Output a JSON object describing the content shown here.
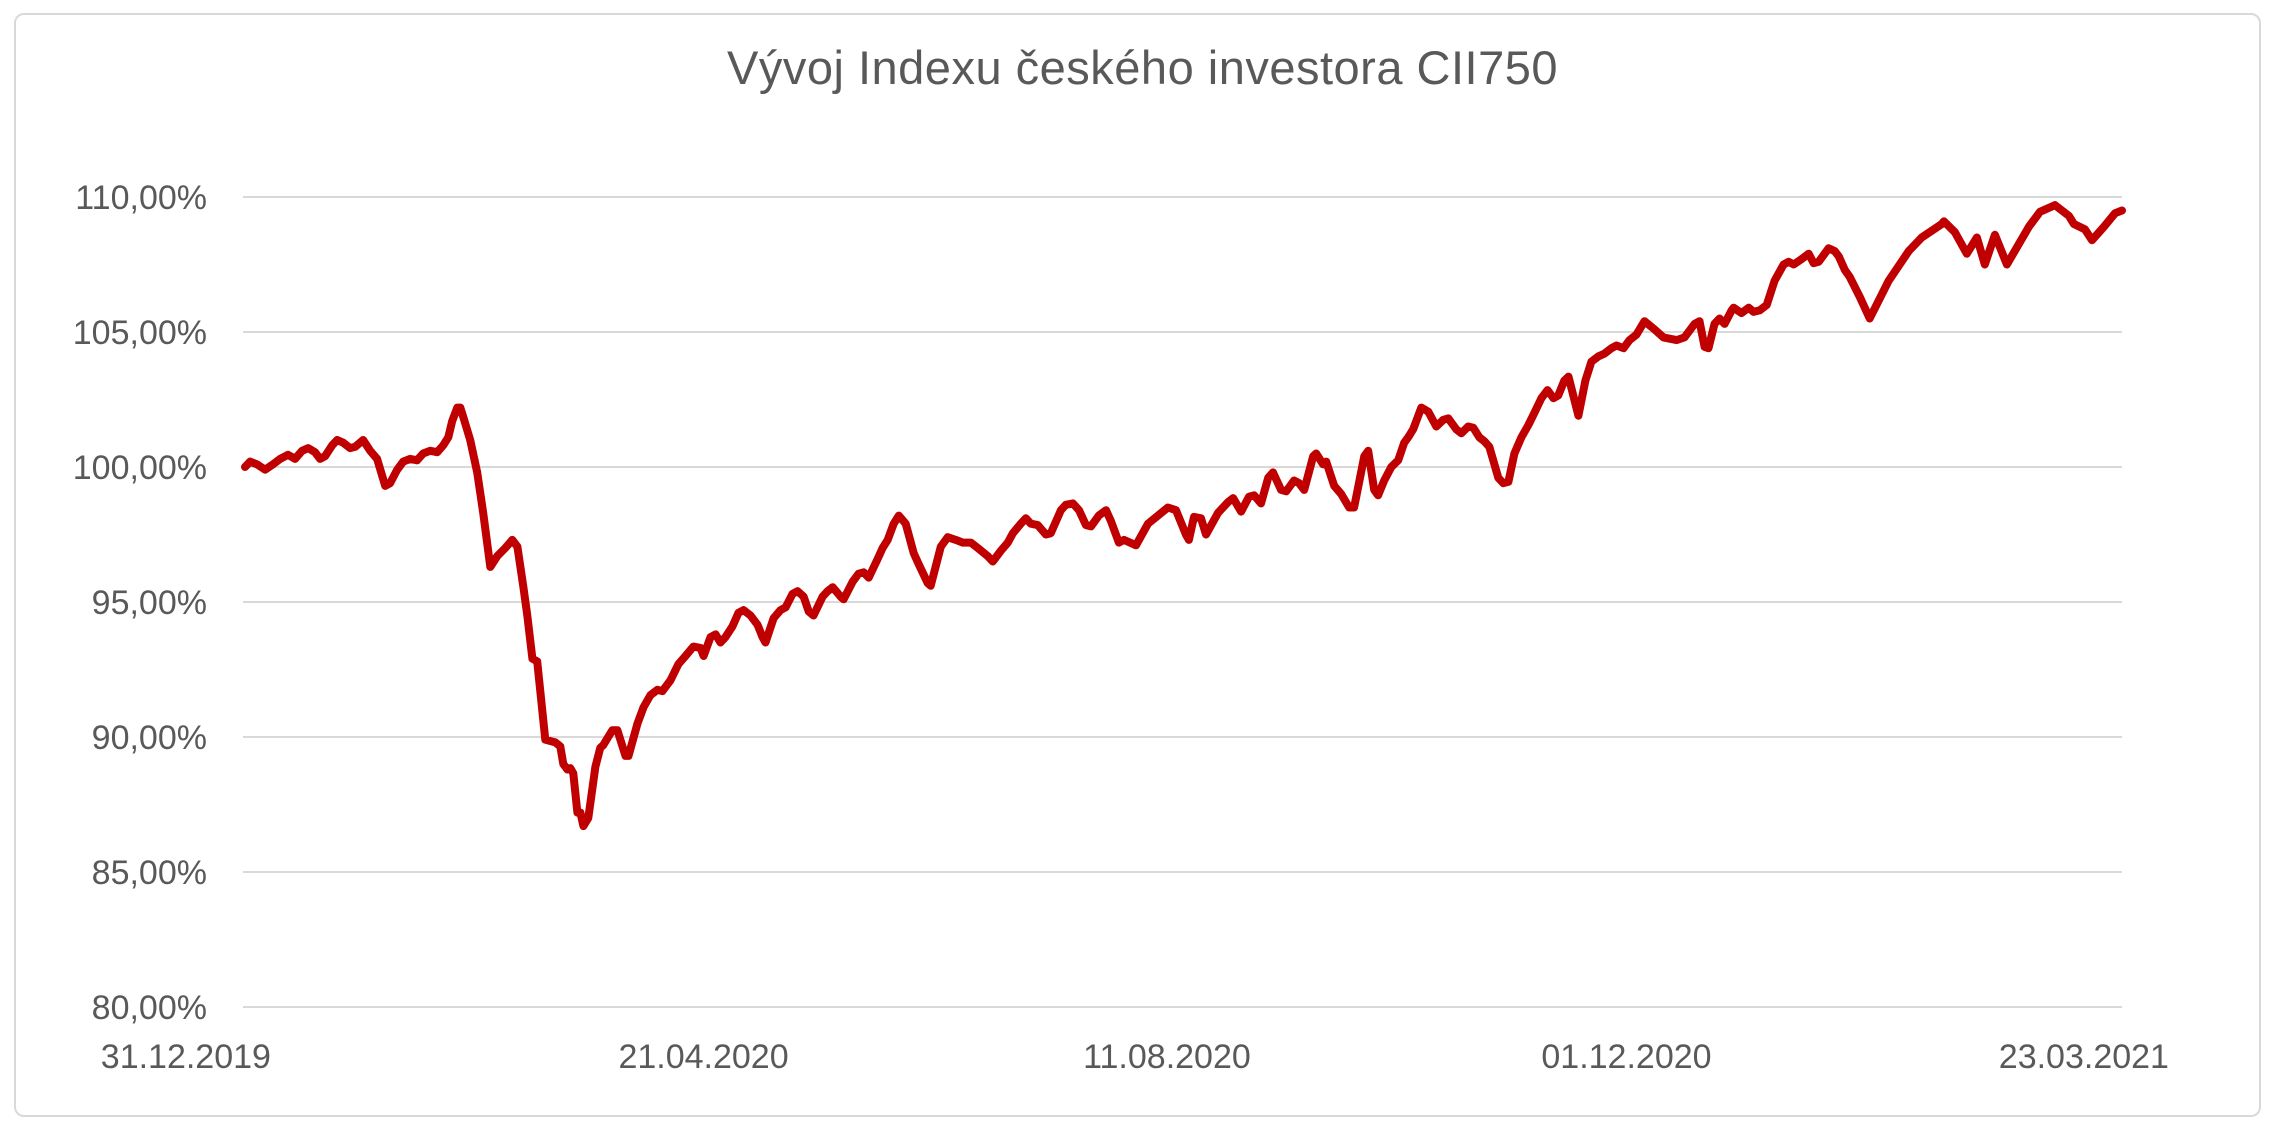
{
  "chart_data": {
    "type": "line",
    "title": "Vývoj Indexu českého investora CII750",
    "series_name": "CII750",
    "xlabel": "",
    "ylabel": "",
    "ylim": [
      80,
      110
    ],
    "y_tick_step": 5,
    "y_tick_values": [
      110,
      105,
      100,
      95,
      90,
      85,
      80
    ],
    "y_tick_labels": [
      "110,00%",
      "105,00%",
      "100,00%",
      "95,00%",
      "90,00%",
      "85,00%",
      "80,00%"
    ],
    "x_tick_labels": [
      "31.12.2019",
      "21.04.2020",
      "11.08.2020",
      "01.12.2020",
      "23.03.2021"
    ],
    "grid": "horizontal",
    "legend": "none",
    "line_color": "#C00000",
    "grid_color": "#D9D9D9",
    "text_color": "#595959",
    "frame_color": "#D9D9D9",
    "background_color": "#FFFFFF",
    "points": [
      [
        0.0,
        100.0
      ],
      [
        0.0027,
        100.2
      ],
      [
        0.0064,
        100.1
      ],
      [
        0.0107,
        99.9
      ],
      [
        0.0149,
        100.1
      ],
      [
        0.0187,
        100.3
      ],
      [
        0.0229,
        100.45
      ],
      [
        0.0267,
        100.3
      ],
      [
        0.0304,
        100.6
      ],
      [
        0.0336,
        100.7
      ],
      [
        0.0373,
        100.55
      ],
      [
        0.04,
        100.3
      ],
      [
        0.0427,
        100.4
      ],
      [
        0.0464,
        100.8
      ],
      [
        0.0491,
        101.0
      ],
      [
        0.0523,
        100.9
      ],
      [
        0.056,
        100.7
      ],
      [
        0.0587,
        100.75
      ],
      [
        0.0629,
        101.0
      ],
      [
        0.0667,
        100.6
      ],
      [
        0.0704,
        100.3
      ],
      [
        0.0747,
        99.3
      ],
      [
        0.0773,
        99.4
      ],
      [
        0.0811,
        99.9
      ],
      [
        0.0843,
        100.2
      ],
      [
        0.088,
        100.3
      ],
      [
        0.0917,
        100.25
      ],
      [
        0.0949,
        100.5
      ],
      [
        0.0987,
        100.6
      ],
      [
        0.1024,
        100.55
      ],
      [
        0.1056,
        100.8
      ],
      [
        0.1083,
        101.1
      ],
      [
        0.1104,
        101.7
      ],
      [
        0.1131,
        102.2
      ],
      [
        0.1147,
        102.2
      ],
      [
        0.1163,
        101.85
      ],
      [
        0.12,
        101.0
      ],
      [
        0.1237,
        99.8
      ],
      [
        0.1269,
        98.3
      ],
      [
        0.1307,
        96.3
      ],
      [
        0.1344,
        96.7
      ],
      [
        0.1387,
        97.0
      ],
      [
        0.1424,
        97.3
      ],
      [
        0.1451,
        97.05
      ],
      [
        0.1483,
        95.55
      ],
      [
        0.1504,
        94.5
      ],
      [
        0.1531,
        92.9
      ],
      [
        0.1557,
        92.8
      ],
      [
        0.16,
        89.9
      ],
      [
        0.1653,
        89.8
      ],
      [
        0.168,
        89.65
      ],
      [
        0.1696,
        89.0
      ],
      [
        0.1717,
        88.8
      ],
      [
        0.1733,
        88.85
      ],
      [
        0.1749,
        88.65
      ],
      [
        0.1771,
        87.2
      ],
      [
        0.1787,
        87.2
      ],
      [
        0.1803,
        86.7
      ],
      [
        0.1829,
        87.0
      ],
      [
        0.1867,
        88.9
      ],
      [
        0.1893,
        89.6
      ],
      [
        0.1909,
        89.7
      ],
      [
        0.1957,
        90.25
      ],
      [
        0.1984,
        90.25
      ],
      [
        0.2027,
        89.3
      ],
      [
        0.2043,
        89.3
      ],
      [
        0.2091,
        90.5
      ],
      [
        0.2123,
        91.1
      ],
      [
        0.216,
        91.55
      ],
      [
        0.2197,
        91.75
      ],
      [
        0.2224,
        91.7
      ],
      [
        0.2267,
        92.1
      ],
      [
        0.2309,
        92.7
      ],
      [
        0.2347,
        93.0
      ],
      [
        0.2389,
        93.35
      ],
      [
        0.2427,
        93.3
      ],
      [
        0.2443,
        93.0
      ],
      [
        0.248,
        93.7
      ],
      [
        0.2507,
        93.8
      ],
      [
        0.2533,
        93.5
      ],
      [
        0.256,
        93.7
      ],
      [
        0.2597,
        94.1
      ],
      [
        0.2629,
        94.6
      ],
      [
        0.2656,
        94.7
      ],
      [
        0.2693,
        94.5
      ],
      [
        0.2731,
        94.15
      ],
      [
        0.2757,
        93.7
      ],
      [
        0.2773,
        93.5
      ],
      [
        0.2816,
        94.4
      ],
      [
        0.2853,
        94.7
      ],
      [
        0.288,
        94.8
      ],
      [
        0.2917,
        95.3
      ],
      [
        0.2944,
        95.4
      ],
      [
        0.2976,
        95.2
      ],
      [
        0.3003,
        94.65
      ],
      [
        0.3029,
        94.5
      ],
      [
        0.3077,
        95.2
      ],
      [
        0.3104,
        95.4
      ],
      [
        0.3131,
        95.55
      ],
      [
        0.3173,
        95.2
      ],
      [
        0.3189,
        95.1
      ],
      [
        0.3237,
        95.75
      ],
      [
        0.3269,
        96.05
      ],
      [
        0.3296,
        96.1
      ],
      [
        0.3323,
        95.9
      ],
      [
        0.3371,
        96.6
      ],
      [
        0.3397,
        97.0
      ],
      [
        0.3424,
        97.3
      ],
      [
        0.3456,
        97.9
      ],
      [
        0.3483,
        98.2
      ],
      [
        0.352,
        97.9
      ],
      [
        0.3563,
        96.8
      ],
      [
        0.3589,
        96.4
      ],
      [
        0.3637,
        95.7
      ],
      [
        0.3653,
        95.6
      ],
      [
        0.3707,
        97.05
      ],
      [
        0.3744,
        97.4
      ],
      [
        0.3787,
        97.3
      ],
      [
        0.3824,
        97.2
      ],
      [
        0.3867,
        97.2
      ],
      [
        0.3904,
        97.0
      ],
      [
        0.3957,
        96.7
      ],
      [
        0.3984,
        96.5
      ],
      [
        0.4027,
        96.9
      ],
      [
        0.4064,
        97.2
      ],
      [
        0.4091,
        97.55
      ],
      [
        0.4133,
        97.9
      ],
      [
        0.416,
        98.1
      ],
      [
        0.4187,
        97.9
      ],
      [
        0.4224,
        97.85
      ],
      [
        0.4267,
        97.5
      ],
      [
        0.4293,
        97.55
      ],
      [
        0.4347,
        98.4
      ],
      [
        0.4373,
        98.6
      ],
      [
        0.4411,
        98.65
      ],
      [
        0.4443,
        98.4
      ],
      [
        0.448,
        97.85
      ],
      [
        0.4507,
        97.8
      ],
      [
        0.4549,
        98.2
      ],
      [
        0.4587,
        98.4
      ],
      [
        0.4613,
        98.0
      ],
      [
        0.4656,
        97.2
      ],
      [
        0.4683,
        97.3
      ],
      [
        0.4747,
        97.1
      ],
      [
        0.4811,
        97.9
      ],
      [
        0.4917,
        98.5
      ],
      [
        0.496,
        98.4
      ],
      [
        0.5013,
        97.5
      ],
      [
        0.5029,
        97.3
      ],
      [
        0.5056,
        98.15
      ],
      [
        0.5093,
        98.1
      ],
      [
        0.512,
        97.5
      ],
      [
        0.5184,
        98.3
      ],
      [
        0.5237,
        98.7
      ],
      [
        0.5264,
        98.85
      ],
      [
        0.5307,
        98.35
      ],
      [
        0.5349,
        98.9
      ],
      [
        0.5376,
        98.95
      ],
      [
        0.5413,
        98.65
      ],
      [
        0.5451,
        99.6
      ],
      [
        0.5477,
        99.8
      ],
      [
        0.552,
        99.15
      ],
      [
        0.5547,
        99.1
      ],
      [
        0.5589,
        99.5
      ],
      [
        0.5616,
        99.4
      ],
      [
        0.5643,
        99.15
      ],
      [
        0.5691,
        100.4
      ],
      [
        0.5707,
        100.5
      ],
      [
        0.5744,
        100.1
      ],
      [
        0.576,
        100.2
      ],
      [
        0.5803,
        99.3
      ],
      [
        0.584,
        99.0
      ],
      [
        0.5883,
        98.5
      ],
      [
        0.5909,
        98.5
      ],
      [
        0.5963,
        100.4
      ],
      [
        0.5984,
        100.6
      ],
      [
        0.6016,
        99.15
      ],
      [
        0.6037,
        98.95
      ],
      [
        0.6069,
        99.5
      ],
      [
        0.6107,
        100.0
      ],
      [
        0.6144,
        100.25
      ],
      [
        0.6176,
        100.9
      ],
      [
        0.6197,
        101.1
      ],
      [
        0.6224,
        101.4
      ],
      [
        0.6267,
        102.2
      ],
      [
        0.6304,
        102.05
      ],
      [
        0.6347,
        101.5
      ],
      [
        0.6384,
        101.75
      ],
      [
        0.6411,
        101.8
      ],
      [
        0.6453,
        101.4
      ],
      [
        0.648,
        101.25
      ],
      [
        0.6517,
        101.5
      ],
      [
        0.6544,
        101.45
      ],
      [
        0.6576,
        101.1
      ],
      [
        0.6603,
        100.95
      ],
      [
        0.6629,
        100.75
      ],
      [
        0.6677,
        99.6
      ],
      [
        0.6704,
        99.4
      ],
      [
        0.6731,
        99.45
      ],
      [
        0.6763,
        100.5
      ],
      [
        0.68,
        101.1
      ],
      [
        0.6837,
        101.55
      ],
      [
        0.6869,
        102.0
      ],
      [
        0.6907,
        102.55
      ],
      [
        0.6939,
        102.85
      ],
      [
        0.6971,
        102.55
      ],
      [
        0.6997,
        102.65
      ],
      [
        0.7029,
        103.2
      ],
      [
        0.7051,
        103.35
      ],
      [
        0.7104,
        101.9
      ],
      [
        0.7141,
        103.2
      ],
      [
        0.7173,
        103.9
      ],
      [
        0.7211,
        104.1
      ],
      [
        0.7243,
        104.2
      ],
      [
        0.728,
        104.4
      ],
      [
        0.7307,
        104.5
      ],
      [
        0.7344,
        104.4
      ],
      [
        0.7376,
        104.7
      ],
      [
        0.7413,
        104.9
      ],
      [
        0.7456,
        105.4
      ],
      [
        0.7509,
        105.1
      ],
      [
        0.7557,
        104.8
      ],
      [
        0.7627,
        104.7
      ],
      [
        0.7669,
        104.8
      ],
      [
        0.7723,
        105.3
      ],
      [
        0.7749,
        105.4
      ],
      [
        0.7776,
        104.45
      ],
      [
        0.7797,
        104.4
      ],
      [
        0.7829,
        105.3
      ],
      [
        0.7856,
        105.5
      ],
      [
        0.7883,
        105.3
      ],
      [
        0.792,
        105.8
      ],
      [
        0.7931,
        105.9
      ],
      [
        0.7973,
        105.7
      ],
      [
        0.8011,
        105.9
      ],
      [
        0.8037,
        105.75
      ],
      [
        0.8069,
        105.8
      ],
      [
        0.8107,
        106.0
      ],
      [
        0.8149,
        106.9
      ],
      [
        0.8197,
        107.5
      ],
      [
        0.8224,
        107.6
      ],
      [
        0.8251,
        107.5
      ],
      [
        0.8293,
        107.7
      ],
      [
        0.8331,
        107.9
      ],
      [
        0.8357,
        107.55
      ],
      [
        0.8384,
        107.6
      ],
      [
        0.8437,
        108.1
      ],
      [
        0.8469,
        108.0
      ],
      [
        0.8491,
        107.8
      ],
      [
        0.8523,
        107.3
      ],
      [
        0.8549,
        107.05
      ],
      [
        0.8603,
        106.3
      ],
      [
        0.8656,
        105.5
      ],
      [
        0.8757,
        106.9
      ],
      [
        0.8864,
        108.0
      ],
      [
        0.8933,
        108.5
      ],
      [
        0.904,
        109.0
      ],
      [
        0.9051,
        109.1
      ],
      [
        0.9109,
        108.7
      ],
      [
        0.9173,
        107.9
      ],
      [
        0.9227,
        108.5
      ],
      [
        0.9269,
        107.5
      ],
      [
        0.9323,
        108.6
      ],
      [
        0.9387,
        107.5
      ],
      [
        0.9504,
        108.9
      ],
      [
        0.9563,
        109.45
      ],
      [
        0.9643,
        109.7
      ],
      [
        0.9717,
        109.3
      ],
      [
        0.9744,
        109.0
      ],
      [
        0.9803,
        108.8
      ],
      [
        0.984,
        108.4
      ],
      [
        0.9904,
        108.9
      ],
      [
        0.9963,
        109.4
      ],
      [
        1.0,
        109.5
      ]
    ]
  }
}
